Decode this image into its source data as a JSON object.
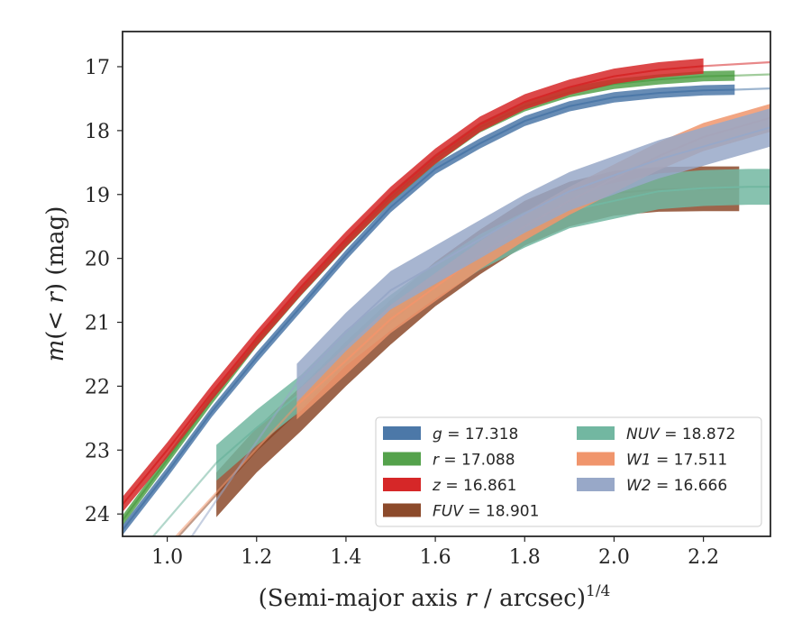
{
  "chart_data": {
    "type": "line",
    "xlabel": "(Semi-major axis r / arcsec)",
    "xlabel_parts": {
      "before": "(Semi-major axis ",
      "var": "r",
      "after": " / arcsec)",
      "sup": "1/4"
    },
    "ylabel": "m(< r) (mag)",
    "ylabel_parts": {
      "var": "m",
      "mid": "(< ",
      "var2": "r",
      "after": ") (mag)"
    },
    "xlim": [
      0.9,
      2.35
    ],
    "ylim": [
      24.35,
      16.45
    ],
    "y_inverted": true,
    "xticks": [
      "1.0",
      "1.2",
      "1.4",
      "1.6",
      "1.8",
      "2.0",
      "2.2"
    ],
    "xtick_values": [
      1.0,
      1.2,
      1.4,
      1.6,
      1.8,
      2.0,
      2.2
    ],
    "yticks": [
      "17",
      "18",
      "19",
      "20",
      "21",
      "22",
      "23",
      "24"
    ],
    "ytick_values": [
      17,
      18,
      19,
      20,
      21,
      22,
      23,
      24
    ],
    "grid": false,
    "legend_placement": "lower-right",
    "legend_columns": 2,
    "series": [
      {
        "name": "g",
        "label": "= 17.318",
        "color": "#4c78a8",
        "band": 0.08,
        "x": [
          0.9,
          1.0,
          1.1,
          1.2,
          1.3,
          1.4,
          1.5,
          1.6,
          1.7,
          1.8,
          1.9,
          2.0,
          2.1,
          2.2,
          2.27
        ],
        "y": [
          24.25,
          23.35,
          22.4,
          21.55,
          20.75,
          19.95,
          19.2,
          18.6,
          18.2,
          17.85,
          17.62,
          17.48,
          17.41,
          17.37,
          17.36
        ],
        "ext_x": [
          2.27,
          2.35
        ],
        "ext_y": [
          17.36,
          17.34
        ]
      },
      {
        "name": "r",
        "label": "= 17.088",
        "color": "#54a24b",
        "band": 0.08,
        "x": [
          0.9,
          1.0,
          1.1,
          1.2,
          1.3,
          1.4,
          1.5,
          1.6,
          1.7,
          1.8,
          1.9,
          2.0,
          2.1,
          2.2,
          2.27
        ],
        "y": [
          24.1,
          23.15,
          22.2,
          21.3,
          20.5,
          19.75,
          19.05,
          18.45,
          17.95,
          17.62,
          17.4,
          17.27,
          17.2,
          17.15,
          17.14
        ],
        "ext_x": [
          2.27,
          2.35
        ],
        "ext_y": [
          17.14,
          17.12
        ]
      },
      {
        "name": "z",
        "label": "= 16.861",
        "color": "#d62728",
        "band": 0.12,
        "x": [
          0.9,
          1.0,
          1.1,
          1.2,
          1.3,
          1.4,
          1.5,
          1.6,
          1.7,
          1.8,
          1.9,
          2.0,
          2.1,
          2.2
        ],
        "y": [
          23.85,
          23.0,
          22.1,
          21.25,
          20.45,
          19.7,
          19.0,
          18.4,
          17.9,
          17.55,
          17.32,
          17.15,
          17.05,
          16.99
        ],
        "ext_x": [
          2.2,
          2.35
        ],
        "ext_y": [
          16.99,
          16.93
        ]
      },
      {
        "name": "FUV",
        "label": "= 18.901",
        "color": "#8c4a2b",
        "band": 0.35,
        "x": [
          1.11,
          1.2,
          1.3,
          1.4,
          1.5,
          1.6,
          1.7,
          1.8,
          1.9,
          2.0,
          2.1,
          2.2,
          2.28
        ],
        "y": [
          23.7,
          23.0,
          22.35,
          21.65,
          21.0,
          20.4,
          19.9,
          19.45,
          19.15,
          18.98,
          18.92,
          18.91,
          18.91
        ],
        "ext_x": [
          0.98,
          1.11
        ],
        "ext_y": [
          24.7,
          23.7
        ]
      },
      {
        "name": "NUV",
        "label": "= 18.872",
        "color": "#72b7a1",
        "band": 0.28,
        "x": [
          1.11,
          1.2,
          1.3,
          1.4,
          1.5,
          1.6,
          1.7,
          1.8,
          1.9,
          2.0,
          2.1,
          2.2,
          2.3,
          2.35
        ],
        "y": [
          23.2,
          22.65,
          22.1,
          21.4,
          20.85,
          20.35,
          19.9,
          19.55,
          19.25,
          19.1,
          18.95,
          18.9,
          18.88,
          18.88
        ],
        "ext_x": [
          0.95,
          1.11
        ],
        "ext_y": [
          24.5,
          23.2
        ]
      },
      {
        "name": "W1",
        "label": "= 17.511",
        "color": "#f0956c",
        "band": 0.22,
        "x": [
          1.29,
          1.4,
          1.5,
          1.6,
          1.7,
          1.8,
          1.9,
          2.0,
          2.1,
          2.2,
          2.3,
          2.35
        ],
        "y": [
          22.3,
          21.6,
          20.95,
          20.45,
          19.95,
          19.5,
          19.1,
          18.75,
          18.4,
          18.1,
          17.9,
          17.8
        ],
        "ext_x": [
          1.0,
          1.29
        ],
        "ext_y": [
          24.5,
          22.3
        ]
      },
      {
        "name": "W2",
        "label": "= 16.666",
        "color": "#98a8c8",
        "band": 0.3,
        "x": [
          1.29,
          1.4,
          1.5,
          1.6,
          1.7,
          1.8,
          1.9,
          2.0,
          2.1,
          2.2,
          2.3,
          2.35
        ],
        "y": [
          21.95,
          21.15,
          20.5,
          20.1,
          19.7,
          19.3,
          18.95,
          18.7,
          18.45,
          18.25,
          18.05,
          17.95
        ],
        "ext_x": [
          1.05,
          1.29
        ],
        "ext_y": [
          24.4,
          21.95
        ]
      }
    ]
  }
}
